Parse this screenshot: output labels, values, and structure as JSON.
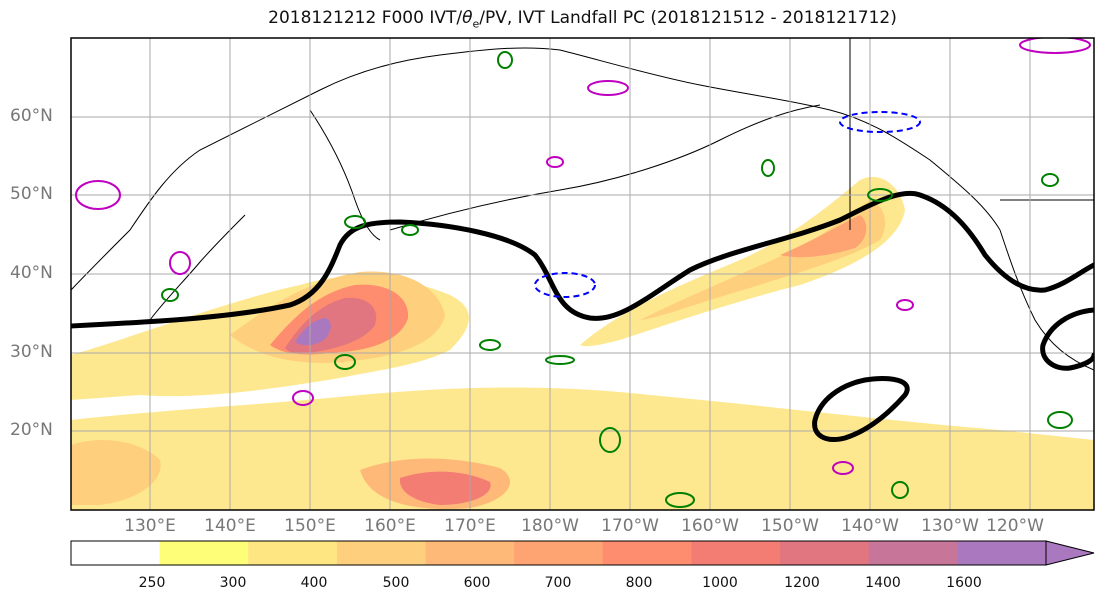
{
  "title_main": "2018121212 F000 IVT/",
  "title_theta": "θ",
  "title_sub": "e",
  "title_rest": "/PV, IVT Landfall PC (2018121512 - 2018121712)",
  "lat_labels": [
    "60°N",
    "50°N",
    "40°N",
    "30°N",
    "20°N"
  ],
  "lon_labels": [
    "130°E",
    "140°E",
    "150°E",
    "160°E",
    "170°E",
    "180°W",
    "170°W",
    "160°W",
    "150°W",
    "140°W",
    "130°W",
    "120°W"
  ],
  "colorbar": {
    "ticks": [
      "250",
      "300",
      "400",
      "500",
      "600",
      "700",
      "800",
      "1000",
      "1200",
      "1400",
      "1600"
    ],
    "colors": [
      "#ffffff",
      "#fefe78",
      "#fee683",
      "#fed07e",
      "#feb978",
      "#fea372",
      "#fe8c6e",
      "#f37c73",
      "#e17680",
      "#c7769a",
      "#a978be"
    ]
  },
  "contour_colors": {
    "pv_line": "#000000",
    "theta_e": "#008000",
    "negative": "#0000ff",
    "magenta": "#c000c0"
  }
}
